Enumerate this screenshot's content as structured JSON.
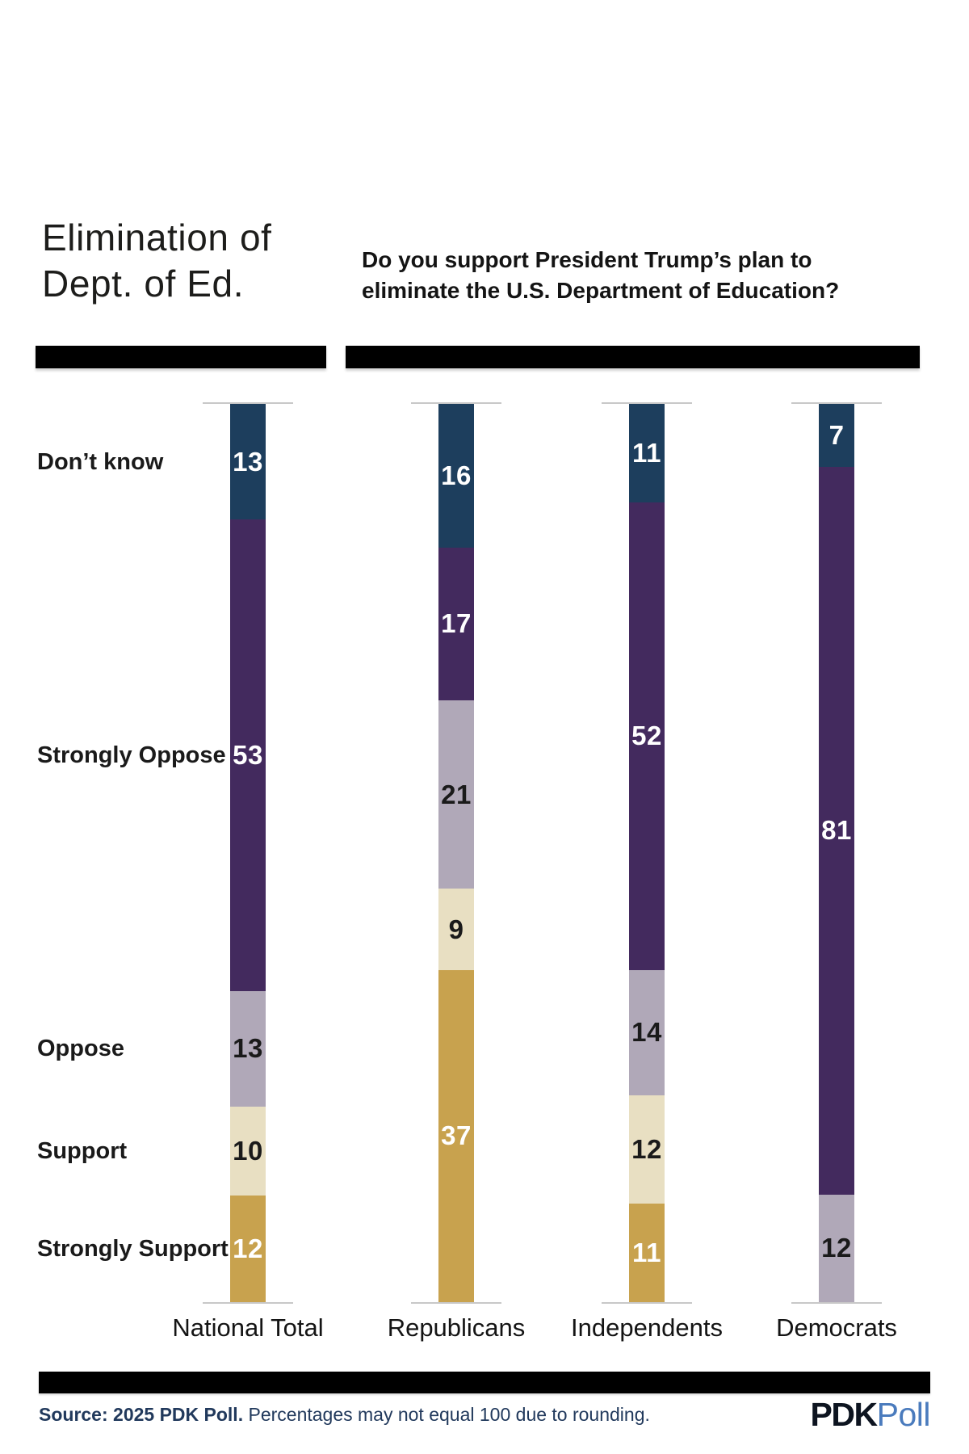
{
  "header": {
    "title_lines": [
      "Elimination of",
      "Dept. of Ed."
    ],
    "question_lines": [
      "Do you support President Trump’s plan to",
      "eliminate the U.S. Department of Education?"
    ]
  },
  "chart_data": {
    "type": "bar",
    "stacked": true,
    "orientation": "vertical",
    "unit": "percent",
    "grid": false,
    "legend_position": "left-category-labels",
    "segments": [
      {
        "label": "Don’t know",
        "color": "#1d3e5d",
        "value_text_color": "#ffffff"
      },
      {
        "label": "Strongly Oppose",
        "color": "#432a5e",
        "value_text_color": "#ffffff"
      },
      {
        "label": "Oppose",
        "color": "#b0a8b8",
        "value_text_color": "#1a1a1a"
      },
      {
        "label": "Support",
        "color": "#e8dfc2",
        "value_text_color": "#1a1a1a"
      },
      {
        "label": "Strongly Support",
        "color": "#c8a24e",
        "value_text_color": "#ffffff"
      }
    ],
    "columns": [
      {
        "label": "National Total",
        "values": [
          13,
          53,
          13,
          10,
          12
        ]
      },
      {
        "label": "Republicans",
        "values": [
          16,
          17,
          21,
          9,
          37
        ]
      },
      {
        "label": "Independents",
        "values": [
          11,
          52,
          14,
          12,
          11
        ]
      },
      {
        "label": "Democrats",
        "values": [
          7,
          81,
          12,
          null,
          null
        ]
      }
    ]
  },
  "footer": {
    "source_bold": "Source: 2025 PDK Poll.",
    "source_note": " Percentages may not equal 100 due to rounding.",
    "logo_pdk": "PDK",
    "logo_poll": "Poll"
  },
  "colors": {
    "divider_bar": "#000000",
    "axis_tick_line": "#c8c8c8",
    "source_text": "#21395c",
    "logo_pdk": "#0d1420",
    "logo_poll": "#4a7bbd",
    "background": "#ffffff"
  }
}
